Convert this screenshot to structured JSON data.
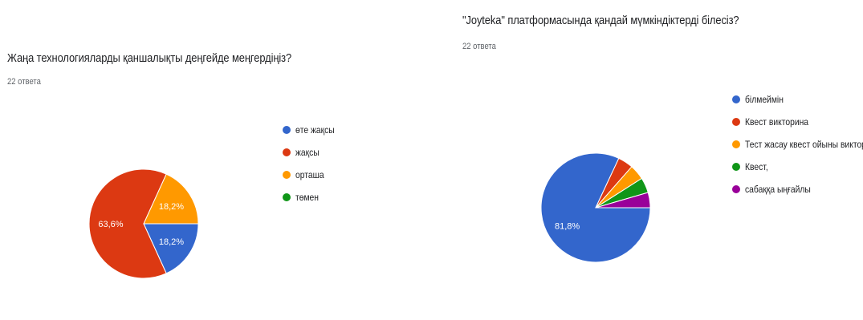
{
  "chart_data": [
    {
      "type": "pie",
      "title": "Жаңа технологияларды қаншалықты деңгейде меңгердіңіз?",
      "subtitle": "22 ответа",
      "legend_position": "right",
      "slices": [
        {
          "label": "өте жақсы",
          "value": 18.2,
          "display": "18,2%",
          "color": "#3366cc"
        },
        {
          "label": "жақсы",
          "value": 63.6,
          "display": "63,6%",
          "color": "#dc3912"
        },
        {
          "label": "орташа",
          "value": 18.2,
          "display": "18,2%",
          "color": "#ff9900"
        },
        {
          "label": "төмен",
          "value": 0,
          "display": "",
          "color": "#109618"
        }
      ]
    },
    {
      "type": "pie",
      "title": "\"Joyteka\" платформасында қандай мүмкіндіктерді білесіз?",
      "subtitle": "22 ответа",
      "legend_position": "right",
      "slices": [
        {
          "label": "білмеймін",
          "value": 81.8,
          "display": "81,8%",
          "color": "#3366cc"
        },
        {
          "label": "Квест викторина",
          "value": 4.5,
          "display": "",
          "color": "#dc3912"
        },
        {
          "label": "Тест жасау квест ойыны викторина",
          "value": 4.5,
          "display": "",
          "color": "#ff9900"
        },
        {
          "label": "Квест,",
          "value": 4.5,
          "display": "",
          "color": "#109618"
        },
        {
          "label": "сабаққа ыңғайлы",
          "value": 4.5,
          "display": "",
          "color": "#990099"
        }
      ]
    }
  ]
}
